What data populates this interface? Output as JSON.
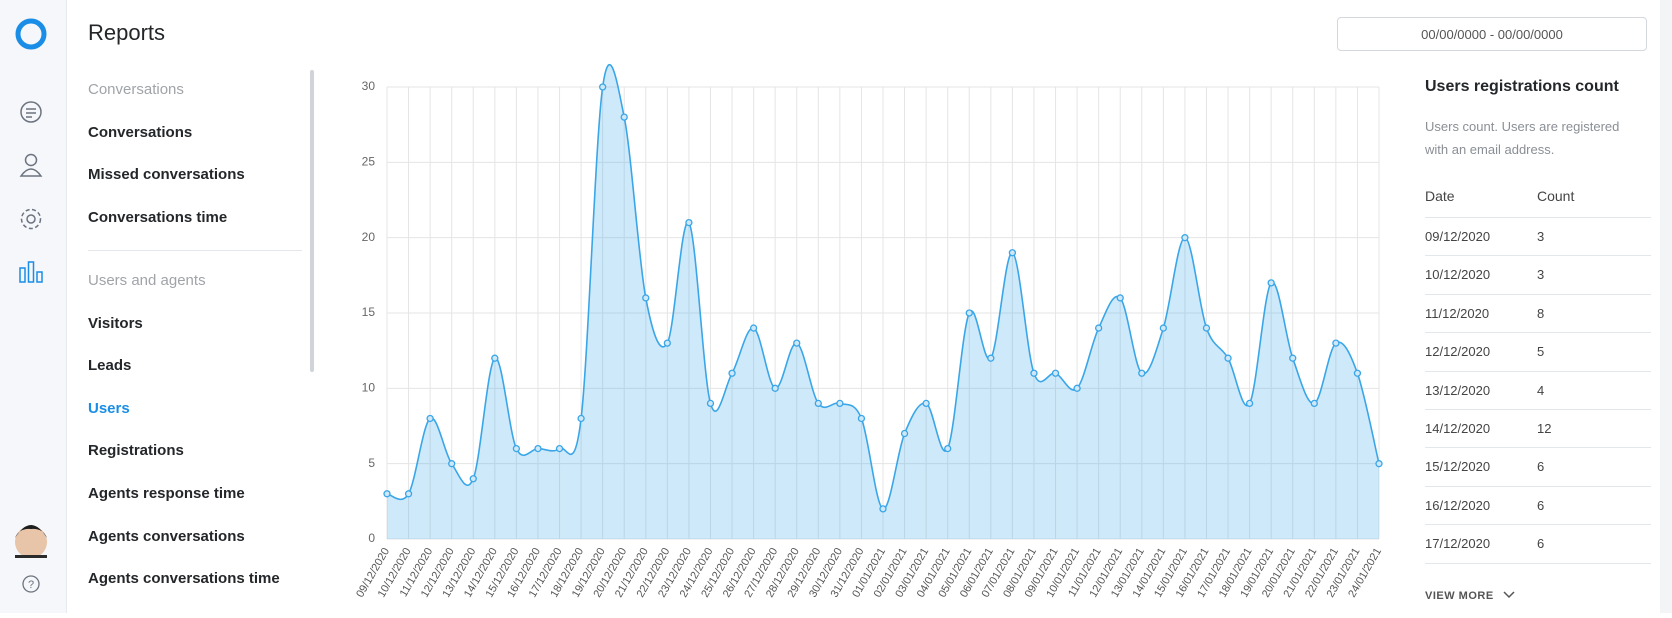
{
  "header": {
    "title": "Reports",
    "date_range": "00/00/0000 - 00/00/0000"
  },
  "menu": {
    "sections": [
      {
        "title": "Conversations",
        "items": [
          "Conversations",
          "Missed conversations",
          "Conversations time"
        ]
      },
      {
        "title": "Users and agents",
        "items": [
          "Visitors",
          "Leads",
          "Users",
          "Registrations",
          "Agents response time",
          "Agents conversations",
          "Agents conversations time"
        ]
      }
    ]
  },
  "chart_data": {
    "type": "area",
    "color": "#3aa6e8",
    "grid": true,
    "categories": [
      "09/12/2020",
      "10/12/2020",
      "11/12/2020",
      "12/12/2020",
      "13/12/2020",
      "14/12/2020",
      "15/12/2020",
      "16/12/2020",
      "17/12/2020",
      "18/12/2020",
      "19/12/2020",
      "20/12/2020",
      "21/12/2020",
      "22/12/2020",
      "23/12/2020",
      "24/12/2020",
      "25/12/2020",
      "26/12/2020",
      "27/12/2020",
      "28/12/2020",
      "29/12/2020",
      "30/12/2020",
      "31/12/2020",
      "01/01/2021",
      "02/01/2021",
      "03/01/2021",
      "04/01/2021",
      "05/01/2021",
      "06/01/2021",
      "07/01/2021",
      "08/01/2021",
      "09/01/2021",
      "10/01/2021",
      "11/01/2021",
      "12/01/2021",
      "13/01/2021",
      "14/01/2021",
      "15/01/2021",
      "16/01/2021",
      "17/01/2021",
      "18/01/2021",
      "19/01/2021",
      "20/01/2021",
      "21/01/2021",
      "22/01/2021",
      "23/01/2021",
      "24/01/2021"
    ],
    "values": [
      3,
      3,
      8,
      5,
      4,
      12,
      6,
      6,
      6,
      8,
      30,
      28,
      16,
      13,
      21,
      9,
      11,
      14,
      10,
      13,
      9,
      9,
      8,
      2,
      7,
      9,
      6,
      15,
      12,
      19,
      11,
      11,
      10,
      14,
      16,
      11,
      14,
      20,
      14,
      12,
      9,
      17,
      12,
      9,
      13,
      11,
      5
    ],
    "ylim": [
      0,
      30
    ],
    "yticks": [
      0,
      5,
      10,
      15,
      20,
      25,
      30
    ]
  },
  "panel": {
    "title": "Users registrations count",
    "description": "Users count. Users are registered with an email address.",
    "table": {
      "columns": [
        "Date",
        "Count"
      ],
      "rows": [
        [
          "09/12/2020",
          3
        ],
        [
          "10/12/2020",
          3
        ],
        [
          "11/12/2020",
          8
        ],
        [
          "12/12/2020",
          5
        ],
        [
          "13/12/2020",
          4
        ],
        [
          "14/12/2020",
          12
        ],
        [
          "15/12/2020",
          6
        ],
        [
          "16/12/2020",
          6
        ],
        [
          "17/12/2020",
          6
        ]
      ]
    },
    "view_more": "VIEW MORE"
  }
}
